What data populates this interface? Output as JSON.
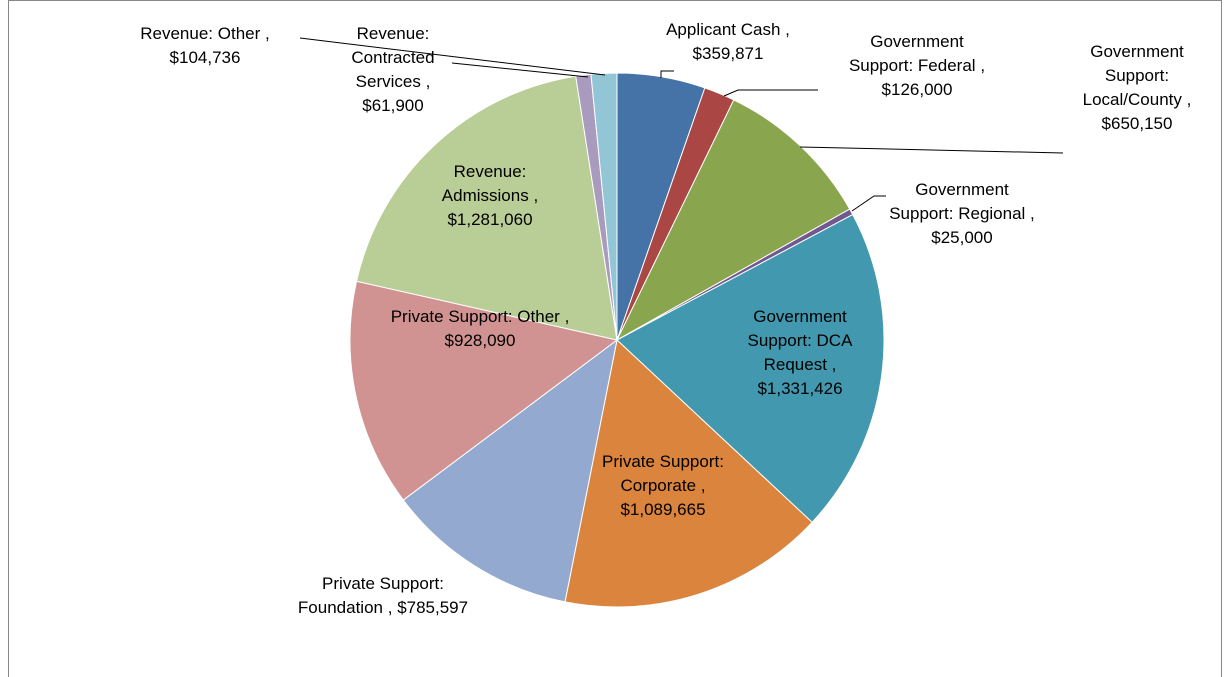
{
  "chart_data": {
    "type": "pie",
    "categories": [
      "Applicant Cash",
      "Government Support: Federal",
      "Government Support: Local/County",
      "Government Support: Regional",
      "Government Support: DCA Request",
      "Private Support: Corporate",
      "Private Support: Foundation",
      "Private Support: Other",
      "Revenue: Admissions",
      "Revenue: Contracted Services",
      "Revenue: Other"
    ],
    "values": [
      359871,
      126000,
      650150,
      25000,
      1331426,
      1089665,
      785597,
      928090,
      1281060,
      61900,
      104736
    ],
    "value_labels": [
      "$359,871",
      "$126,000",
      "$650,150",
      "$25,000",
      "$1,331,426",
      "$1,089,665",
      "$785,597",
      "$928,090",
      "$1,281,060",
      "$61,900",
      "$104,736"
    ],
    "label_separator": ",",
    "colors": [
      "#4572a7",
      "#aa4643",
      "#89a54e",
      "#71588f",
      "#4198af",
      "#db843d",
      "#93a9cf",
      "#d19392",
      "#b9cd96",
      "#a99bbd",
      "#92c5d5"
    ]
  }
}
